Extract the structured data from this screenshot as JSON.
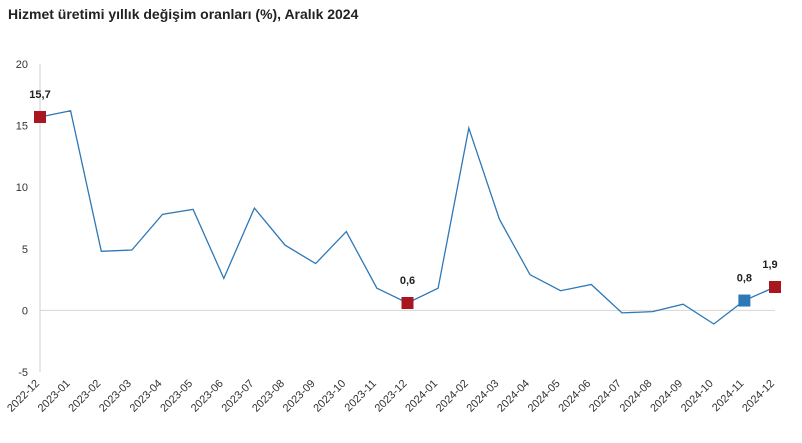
{
  "chart_data": {
    "type": "line",
    "title": "Hizmet üretimi yıllık değişim oranları (%), Aralık 2024",
    "xlabel": "",
    "ylabel": "",
    "ylim": [
      -5,
      20
    ],
    "yticks": [
      -5,
      0,
      5,
      10,
      15,
      20
    ],
    "grid": false,
    "categories": [
      "2022-12",
      "2023-01",
      "2023-02",
      "2023-03",
      "2023-04",
      "2023-05",
      "2023-06",
      "2023-07",
      "2023-08",
      "2023-09",
      "2023-10",
      "2023-11",
      "2023-12",
      "2024-01",
      "2024-02",
      "2024-03",
      "2024-04",
      "2024-05",
      "2024-06",
      "2024-07",
      "2024-08",
      "2024-09",
      "2024-10",
      "2024-11",
      "2024-12"
    ],
    "series": [
      {
        "values": [
          15.7,
          16.2,
          4.8,
          4.9,
          7.8,
          8.2,
          2.6,
          8.3,
          5.3,
          3.8,
          6.4,
          1.8,
          0.6,
          1.8,
          14.8,
          7.4,
          2.9,
          1.6,
          2.1,
          -0.2,
          -0.1,
          0.5,
          -1.1,
          0.8,
          1.9
        ],
        "color": "#2e78b7"
      }
    ],
    "highlights": [
      {
        "category": "2022-12",
        "value": 15.7,
        "label": "15,7",
        "color": "#a8161f"
      },
      {
        "category": "2023-12",
        "value": 0.6,
        "label": "0,6",
        "color": "#a8161f"
      },
      {
        "category": "2024-11",
        "value": 0.8,
        "label": "0,8",
        "color": "#2e78b7"
      },
      {
        "category": "2024-12",
        "value": 1.9,
        "label": "1,9",
        "color": "#a8161f"
      }
    ]
  }
}
